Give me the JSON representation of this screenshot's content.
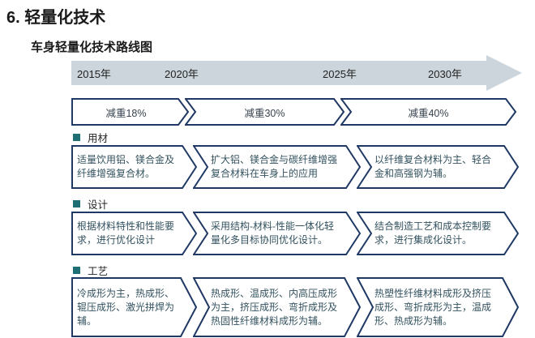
{
  "page": {
    "title": "6. 轻量化技术",
    "subtitle": "车身轻量化技术路线图"
  },
  "timeline": {
    "years": [
      "2015年",
      "2020年",
      "2025年",
      "2030年"
    ]
  },
  "milestones": [
    "减重18%",
    "减重30%",
    "减重40%"
  ],
  "sections": [
    {
      "label": "用材",
      "boxes": [
        "适量饮用铝、镁合金及纤维增强复合材。",
        "扩大铝、镁合金与碳纤维增强复合材料在车身上的应用",
        "以纤维复合材料为主、轻合金和高强钢为辅。"
      ]
    },
    {
      "label": "设计",
      "boxes": [
        "根据材料特性和性能要求，进行优化设计",
        "采用结构-材料-性能一体化轻量化多目标协同优化设计。",
        "结合制造工艺和成本控制要求，进行集成化设计。"
      ]
    },
    {
      "label": "工艺",
      "boxes": [
        "冷成形为主，热成形、辊压成形、激光拼焊为辅。",
        "热成形、温成形、内高压成形为主，挤压成形、弯折成形及热固性纤维材料成形为辅。",
        "热塑性纤维材料成形及挤压成形、弯折成形为主，温成形、热成形为辅。"
      ]
    }
  ],
  "colors": {
    "outline": "#1f3864",
    "arrow_fill": "#ccd5dc",
    "bullet": "#1e6f73",
    "body_text": "#33525f"
  }
}
